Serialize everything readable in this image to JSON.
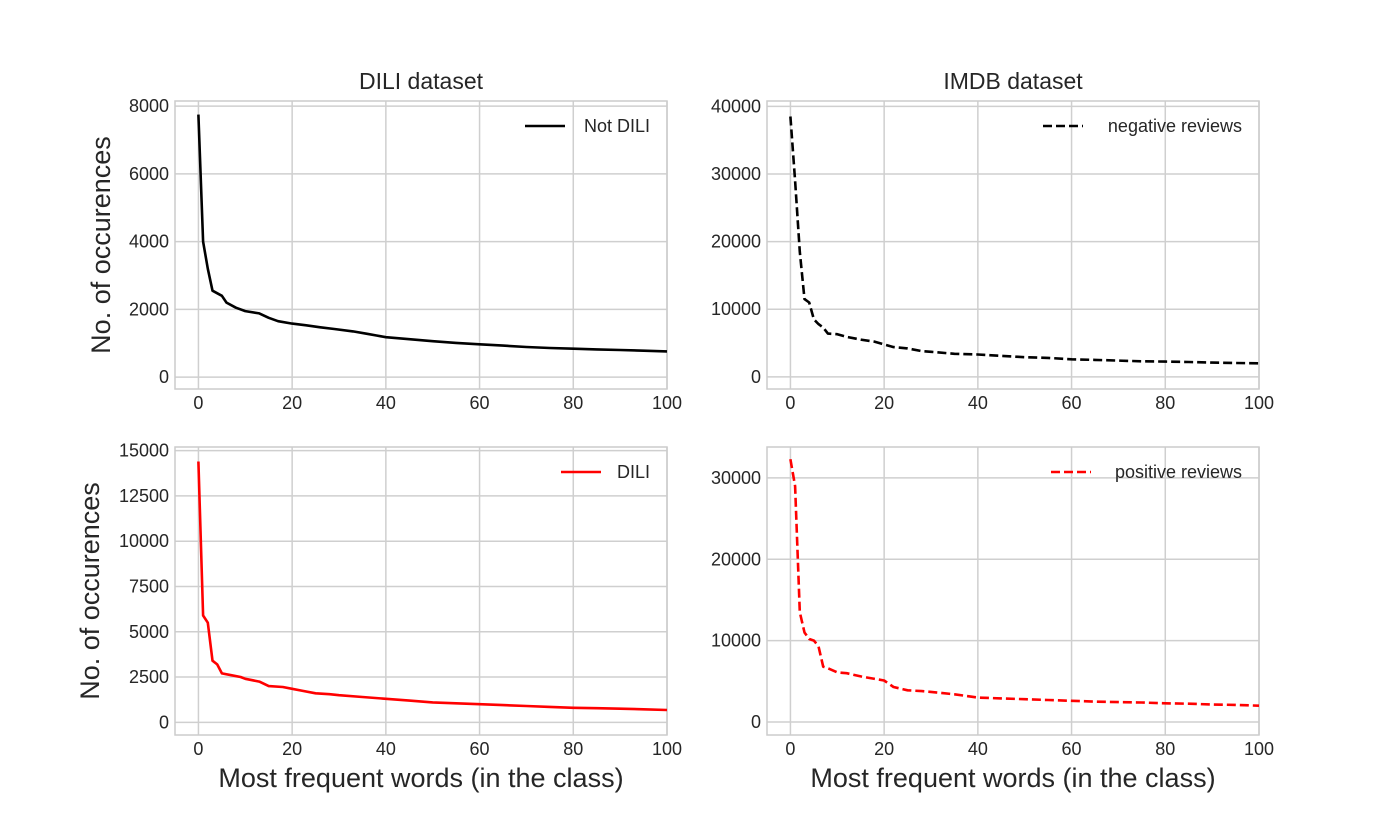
{
  "chart_data": [
    {
      "id": "dili-neg",
      "type": "line",
      "title": "DILI dataset",
      "xlabel": "",
      "ylabel": "No. of occurences",
      "xlim": [
        -5,
        100
      ],
      "ylim": [
        -350,
        8150
      ],
      "xticks": [
        0,
        20,
        40,
        60,
        80,
        100
      ],
      "yticks": [
        0,
        2000,
        4000,
        6000,
        8000
      ],
      "grid": true,
      "legend": "top-right",
      "series": [
        {
          "name": "Not DILI",
          "color": "#000000",
          "dash": "solid",
          "x": [
            0,
            1,
            2,
            3,
            5,
            6,
            8,
            10,
            13,
            15,
            17,
            20,
            23,
            26,
            29,
            33,
            36,
            38,
            40,
            45,
            50,
            55,
            60,
            65,
            70,
            75,
            80,
            85,
            90,
            95,
            100
          ],
          "y": [
            7750,
            4000,
            3200,
            2550,
            2400,
            2200,
            2050,
            1950,
            1880,
            1750,
            1650,
            1580,
            1530,
            1470,
            1420,
            1350,
            1280,
            1230,
            1180,
            1120,
            1060,
            1010,
            970,
            930,
            890,
            860,
            840,
            820,
            800,
            780,
            760
          ]
        }
      ]
    },
    {
      "id": "imdb-neg",
      "type": "line",
      "title": "IMDB dataset",
      "xlabel": "",
      "ylabel": "",
      "xlim": [
        -5,
        100
      ],
      "ylim": [
        -1800,
        40800
      ],
      "xticks": [
        0,
        20,
        40,
        60,
        80,
        100
      ],
      "yticks": [
        0,
        10000,
        20000,
        30000,
        40000
      ],
      "grid": true,
      "legend": "top-right",
      "series": [
        {
          "name": "negative reviews",
          "color": "#000000",
          "dash": "dashed",
          "x": [
            0,
            1,
            2,
            3,
            4,
            5,
            6,
            7,
            8,
            10,
            12,
            15,
            18,
            20,
            22,
            25,
            28,
            30,
            35,
            40,
            45,
            50,
            55,
            60,
            65,
            70,
            75,
            80,
            85,
            90,
            95,
            100
          ],
          "y": [
            38500,
            29000,
            18500,
            11500,
            11000,
            8500,
            7800,
            7300,
            6400,
            6300,
            5900,
            5500,
            5200,
            4800,
            4400,
            4200,
            3800,
            3700,
            3400,
            3300,
            3100,
            2900,
            2800,
            2600,
            2500,
            2400,
            2300,
            2250,
            2200,
            2100,
            2050,
            2000
          ]
        }
      ]
    },
    {
      "id": "dili-pos",
      "type": "line",
      "title": "",
      "xlabel": "Most frequent words (in the class)",
      "ylabel": "No. of occurences",
      "xlim": [
        -5,
        100
      ],
      "ylim": [
        -700,
        15200
      ],
      "xticks": [
        0,
        20,
        40,
        60,
        80,
        100
      ],
      "yticks": [
        0,
        2500,
        5000,
        7500,
        10000,
        12500,
        15000
      ],
      "grid": true,
      "legend": "top-right",
      "series": [
        {
          "name": "DILI",
          "color": "#ff0000",
          "dash": "solid",
          "x": [
            0,
            1,
            2,
            3,
            4,
            5,
            7,
            9,
            10,
            13,
            15,
            18,
            20,
            22,
            25,
            28,
            30,
            35,
            40,
            45,
            50,
            55,
            60,
            65,
            70,
            75,
            80,
            85,
            90,
            95,
            100
          ],
          "y": [
            14400,
            5900,
            5500,
            3400,
            3200,
            2700,
            2600,
            2500,
            2400,
            2250,
            2000,
            1950,
            1850,
            1750,
            1600,
            1550,
            1500,
            1400,
            1300,
            1200,
            1100,
            1050,
            1000,
            950,
            900,
            850,
            800,
            780,
            750,
            720,
            680
          ]
        }
      ]
    },
    {
      "id": "imdb-pos",
      "type": "line",
      "title": "",
      "xlabel": "Most frequent words (in the class)",
      "ylabel": "",
      "xlim": [
        -5,
        100
      ],
      "ylim": [
        -1600,
        33800
      ],
      "xticks": [
        0,
        20,
        40,
        60,
        80,
        100
      ],
      "yticks": [
        0,
        10000,
        20000,
        30000
      ],
      "grid": true,
      "legend": "top-right",
      "series": [
        {
          "name": "positive reviews",
          "color": "#ff0000",
          "dash": "dashed",
          "x": [
            0,
            1,
            2,
            3,
            4,
            5,
            6,
            7,
            8,
            10,
            12,
            15,
            18,
            20,
            22,
            25,
            28,
            30,
            35,
            40,
            45,
            50,
            55,
            60,
            65,
            70,
            75,
            80,
            85,
            90,
            95,
            100
          ],
          "y": [
            32300,
            29000,
            13500,
            11000,
            10200,
            10000,
            9300,
            6800,
            6600,
            6100,
            6000,
            5600,
            5300,
            5100,
            4300,
            3900,
            3800,
            3700,
            3400,
            3000,
            2900,
            2800,
            2700,
            2600,
            2500,
            2450,
            2400,
            2300,
            2250,
            2150,
            2100,
            2000
          ]
        }
      ]
    }
  ]
}
